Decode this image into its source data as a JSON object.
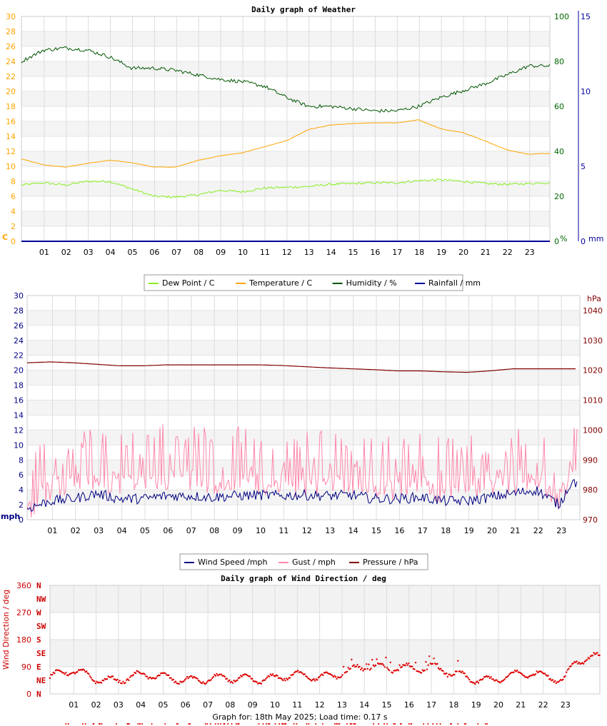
{
  "footer": "Graph for: 18th May 2025; Load time: 0.17 s",
  "hours": [
    "01",
    "02",
    "03",
    "04",
    "05",
    "06",
    "07",
    "08",
    "09",
    "10",
    "11",
    "12",
    "13",
    "14",
    "15",
    "16",
    "17",
    "18",
    "19",
    "20",
    "21",
    "22",
    "23"
  ],
  "chart_data": [
    {
      "type": "line",
      "title": "Daily graph of Weather",
      "left_unit": "C",
      "right_units": [
        "%",
        "mm"
      ],
      "ylim_left": [
        0,
        30
      ],
      "ylim_humidity": [
        0,
        100
      ],
      "ylim_rain": [
        0,
        15
      ],
      "left_ticks": [
        0,
        2,
        4,
        6,
        8,
        10,
        12,
        14,
        16,
        18,
        20,
        22,
        24,
        26,
        28,
        30
      ],
      "humidity_ticks": [
        0,
        20,
        40,
        60,
        80,
        100
      ],
      "rain_ticks": [
        0,
        5,
        10,
        15
      ],
      "x": [
        0,
        1,
        2,
        3,
        4,
        5,
        6,
        7,
        8,
        9,
        10,
        11,
        12,
        13,
        14,
        15,
        16,
        17,
        18,
        19,
        20,
        21,
        22,
        23,
        23.5
      ],
      "series": [
        {
          "name": "Dew Point / C",
          "color": "#88ee22",
          "axis": "left",
          "values": [
            7.5,
            7.8,
            7.5,
            8.0,
            8.0,
            7.0,
            6.0,
            5.9,
            6.2,
            6.8,
            6.6,
            7.1,
            7.2,
            7.3,
            7.6,
            7.7,
            7.8,
            7.8,
            8.1,
            8.2,
            8.0,
            7.7,
            7.6,
            7.7,
            7.8
          ]
        },
        {
          "name": "Temperature / C",
          "color": "#ffa500",
          "axis": "left",
          "values": [
            11.0,
            10.2,
            9.9,
            10.4,
            10.8,
            10.5,
            9.9,
            9.9,
            10.8,
            11.4,
            11.8,
            12.6,
            13.4,
            14.9,
            15.5,
            15.7,
            15.8,
            15.8,
            16.2,
            15.0,
            14.5,
            13.4,
            12.2,
            11.6,
            11.7
          ]
        },
        {
          "name": "Humidity / %",
          "color": "#005500",
          "axis": "humidity",
          "values": [
            80,
            85,
            86,
            85,
            82,
            77,
            77,
            76,
            74,
            72,
            71,
            69,
            64,
            60,
            60,
            59,
            58,
            58,
            60,
            64,
            67,
            70,
            74,
            78,
            78
          ]
        },
        {
          "name": "Rainfall / mm",
          "color": "#000099",
          "axis": "rain",
          "values": [
            0,
            0,
            0,
            0,
            0,
            0,
            0,
            0,
            0,
            0,
            0,
            0,
            0,
            0,
            0,
            0,
            0,
            0,
            0,
            0,
            0,
            0,
            0,
            0,
            0
          ]
        }
      ]
    },
    {
      "type": "line",
      "title": "",
      "left_unit": "mph",
      "right_unit": "hPa",
      "ylim_left": [
        0,
        30
      ],
      "ylim_right": [
        970,
        1045
      ],
      "left_ticks": [
        0,
        2,
        4,
        6,
        8,
        10,
        12,
        14,
        16,
        18,
        20,
        22,
        24,
        26,
        28,
        30
      ],
      "right_ticks": [
        970,
        980,
        990,
        1000,
        1010,
        1020,
        1030,
        1040
      ],
      "x": [
        0,
        1,
        2,
        3,
        4,
        5,
        6,
        7,
        8,
        9,
        10,
        11,
        12,
        13,
        14,
        15,
        16,
        17,
        18,
        19,
        20,
        21,
        22,
        23,
        23.5
      ],
      "series": [
        {
          "name": "Wind Speed /mph",
          "color": "#000080",
          "values": [
            1.5,
            2.5,
            2.8,
            3.5,
            2.8,
            2.8,
            3.2,
            3.2,
            3.0,
            3.2,
            3.3,
            3.2,
            3.3,
            3.2,
            3.3,
            2.8,
            2.8,
            3.0,
            2.5,
            2.5,
            3.0,
            3.5,
            4.0,
            2.0,
            5.0
          ]
        },
        {
          "name": "Gust / mph",
          "color": "#ff88aa",
          "values": [
            2.5,
            5.5,
            6.5,
            6.5,
            6.0,
            6.0,
            7.0,
            7.0,
            6.0,
            6.5,
            6.5,
            6.0,
            6.0,
            6.0,
            6.5,
            5.5,
            5.5,
            6.0,
            5.0,
            5.5,
            6.0,
            6.5,
            7.0,
            4.0,
            8.0
          ]
        },
        {
          "name": "Pressure / hPa",
          "color": "#800000",
          "values": [
            1022.5,
            1022.8,
            1022.5,
            1022.0,
            1021.5,
            1021.5,
            1021.8,
            1021.8,
            1021.8,
            1021.8,
            1021.8,
            1021.6,
            1021.2,
            1020.8,
            1020.5,
            1020.2,
            1019.8,
            1019.8,
            1019.5,
            1019.3,
            1019.8,
            1020.5,
            1020.5,
            1020.5,
            1020.5
          ]
        }
      ]
    },
    {
      "type": "scatter",
      "title": "Daily graph of Wind Direction / deg",
      "ylabel": "Wind Direction / deg",
      "ylim": [
        0,
        360
      ],
      "y_ticks": [
        0,
        90,
        180,
        270,
        360
      ],
      "compass_labels": [
        "N",
        "NW",
        "W",
        "SW",
        "S",
        "SE",
        "E",
        "NE",
        "N"
      ],
      "color": "#dd0000",
      "x": [
        0,
        1,
        2,
        3,
        4,
        5,
        6,
        7,
        8,
        9,
        10,
        11,
        12,
        13,
        14,
        15,
        16,
        17,
        18,
        19,
        20,
        21,
        22,
        23,
        23.5
      ],
      "values": [
        55,
        70,
        55,
        50,
        55,
        55,
        55,
        45,
        45,
        55,
        55,
        55,
        55,
        75,
        85,
        80,
        95,
        90,
        60,
        50,
        55,
        60,
        60,
        55,
        115
      ]
    }
  ]
}
